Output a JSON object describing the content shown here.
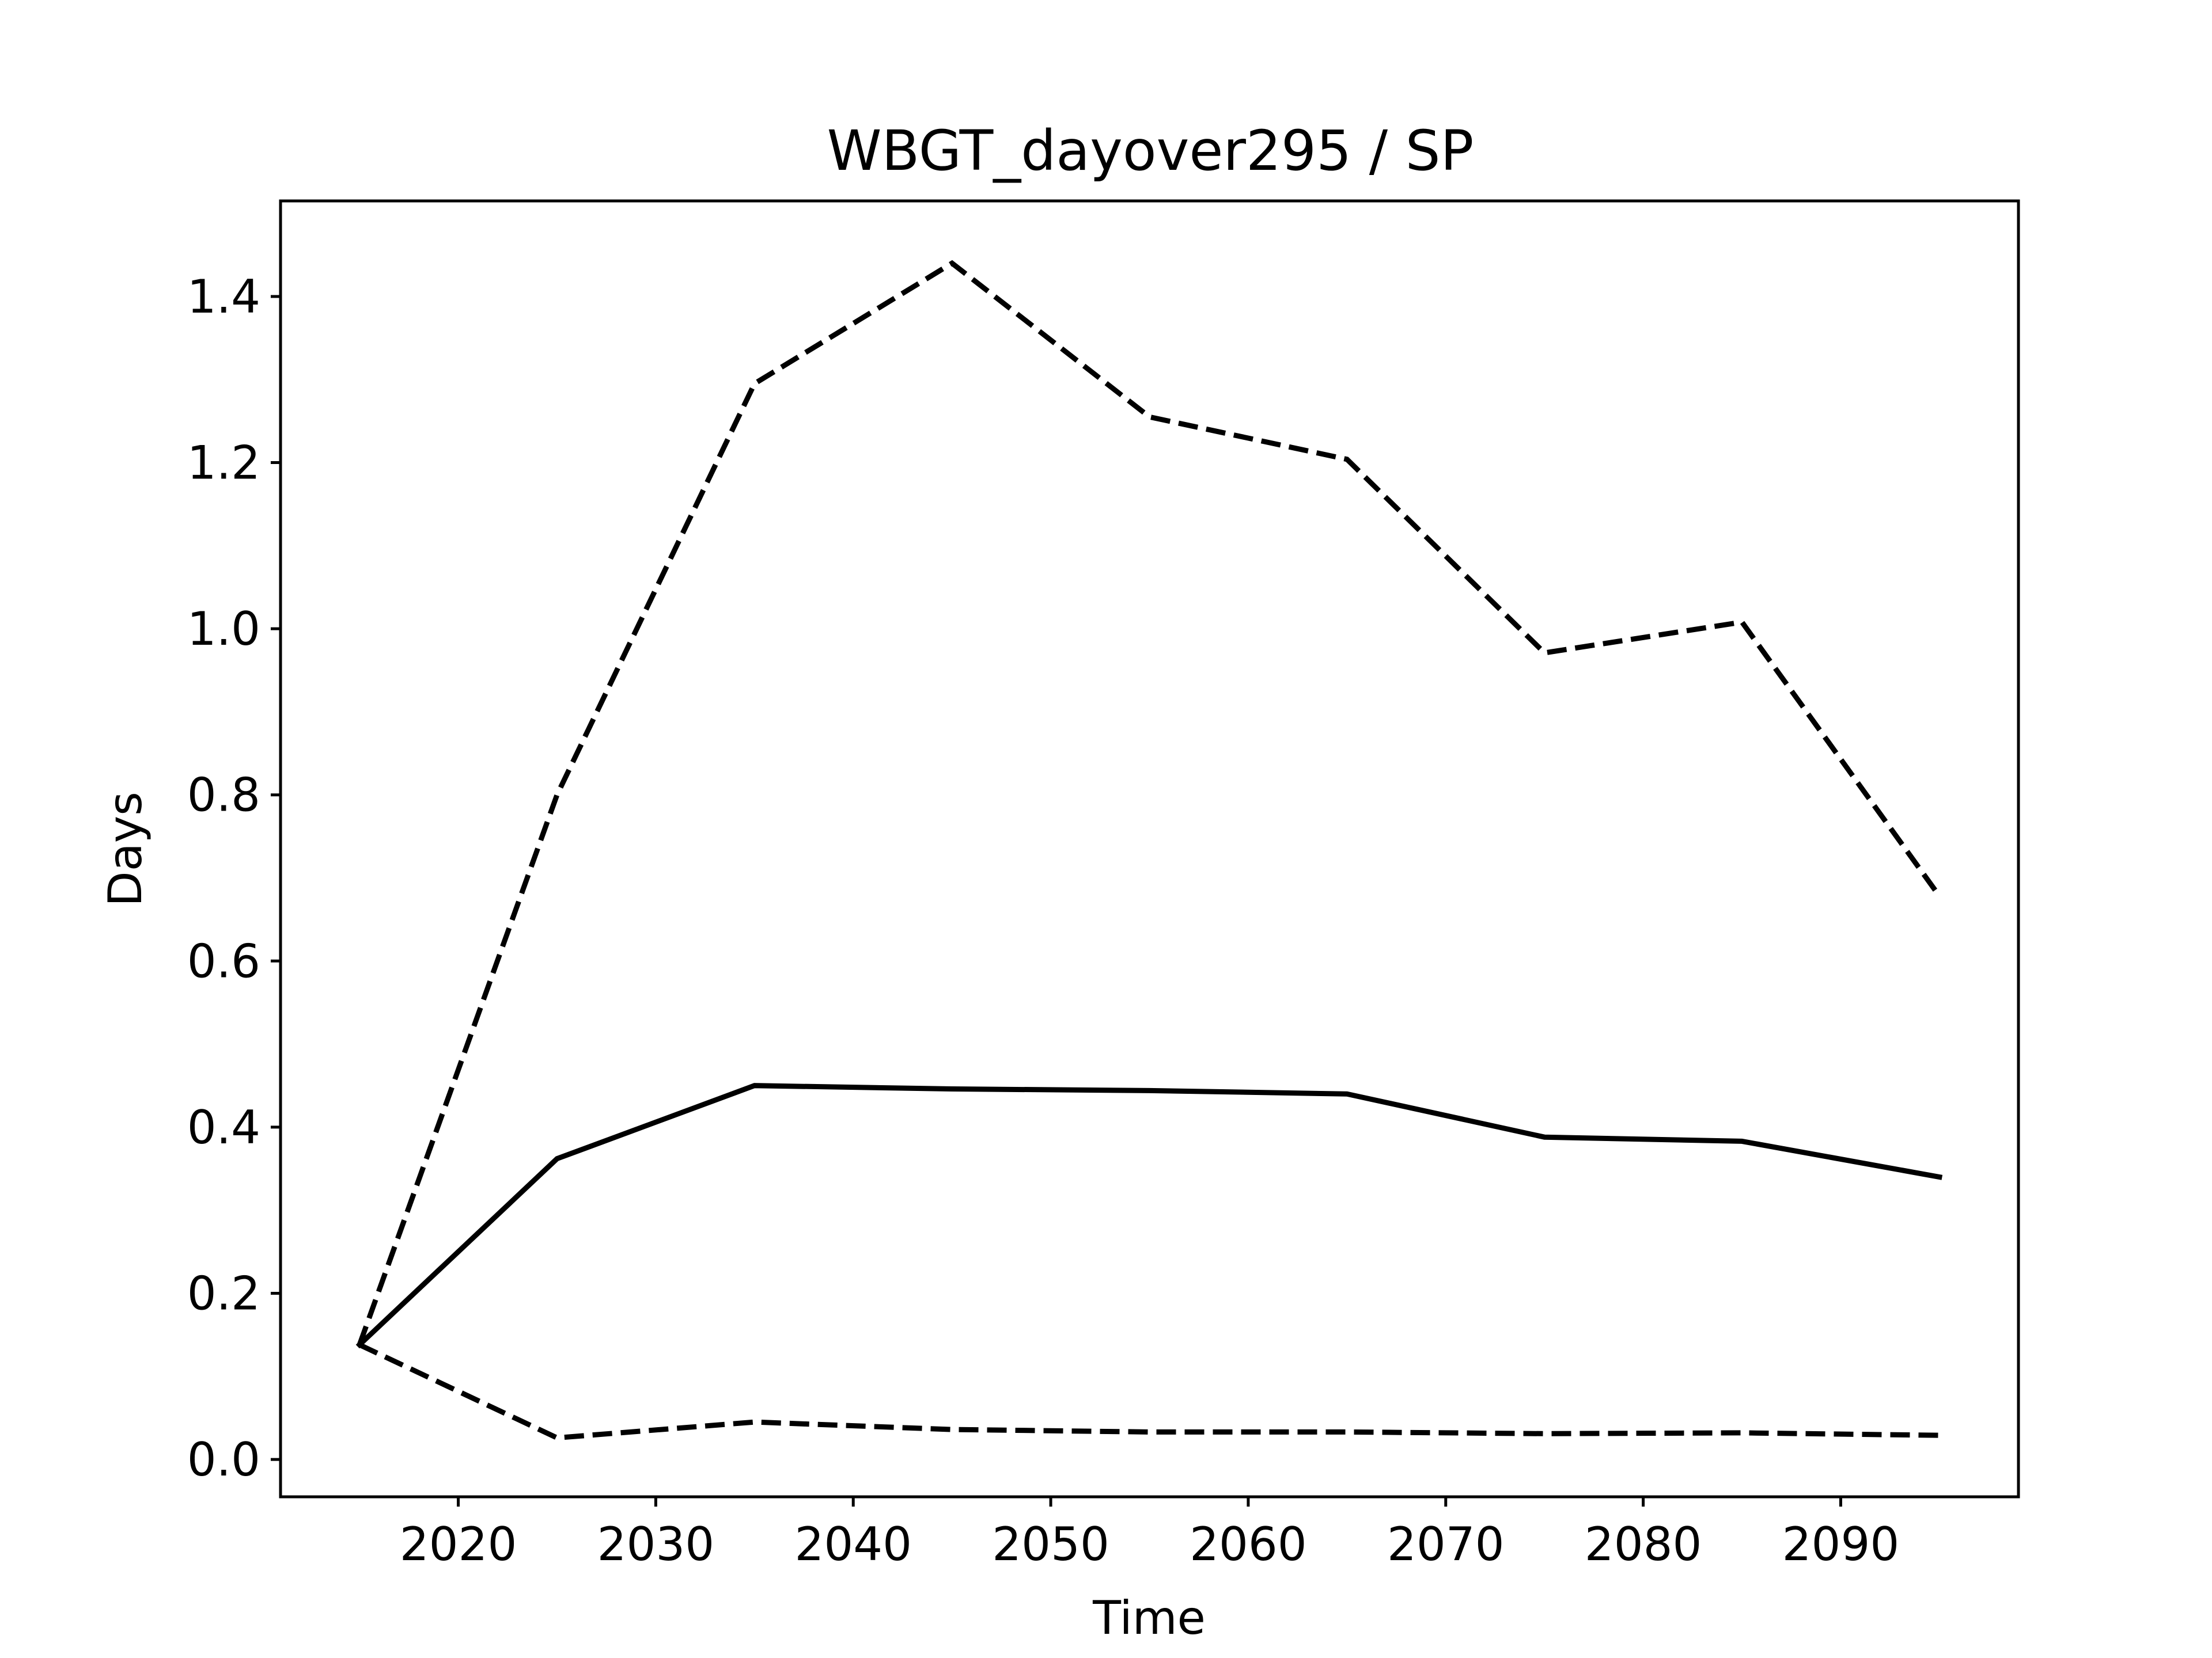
{
  "chart_data": {
    "type": "line",
    "title": "WBGT_dayover295 / SP",
    "xlabel": "Time",
    "ylabel": "Days",
    "x": [
      2015,
      2025,
      2035,
      2045,
      2055,
      2065,
      2075,
      2085,
      2095
    ],
    "xlim": [
      2011,
      2099
    ],
    "ylim": [
      -0.045,
      1.515
    ],
    "xticks": [
      2020,
      2030,
      2040,
      2050,
      2060,
      2070,
      2080,
      2090
    ],
    "yticks": [
      0.0,
      0.2,
      0.4,
      0.6,
      0.8,
      1.0,
      1.2,
      1.4
    ],
    "ytick_labels": [
      "0.0",
      "0.2",
      "0.4",
      "0.6",
      "0.8",
      "1.0",
      "1.2",
      "1.4"
    ],
    "grid": false,
    "series": [
      {
        "style": "solid",
        "color": "#000000",
        "values": [
          0.138,
          0.362,
          0.45,
          0.446,
          0.444,
          0.44,
          0.388,
          0.383,
          0.34
        ]
      },
      {
        "style": "dashed",
        "color": "#000000",
        "values": [
          0.138,
          0.8,
          1.295,
          1.44,
          1.255,
          1.204,
          0.971,
          1.008,
          0.678
        ]
      },
      {
        "style": "dashed",
        "color": "#000000",
        "values": [
          0.138,
          0.026,
          0.045,
          0.036,
          0.033,
          0.033,
          0.031,
          0.032,
          0.029
        ]
      }
    ]
  }
}
